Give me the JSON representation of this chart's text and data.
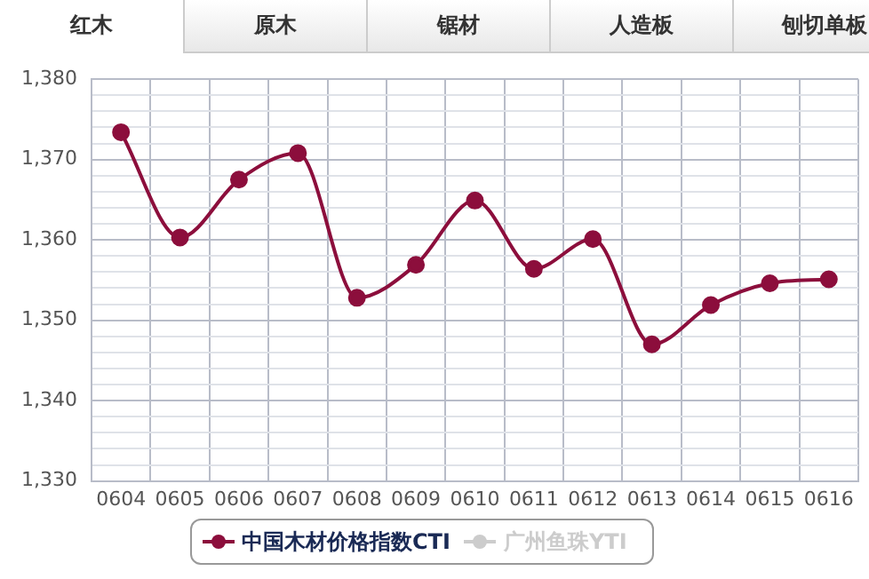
{
  "chart_data": {
    "type": "line",
    "annotations": [
      "红木",
      "原木",
      "锯材",
      "人造板",
      "刨切单板"
    ],
    "categories": [
      "0604",
      "0605",
      "0606",
      "0607",
      "0608",
      "0609",
      "0610",
      "0611",
      "0612",
      "0613",
      "0614",
      "0615",
      "0616"
    ],
    "series": [
      {
        "name": "中国木材价格指数CTI",
        "color": "#8c0e3c",
        "values": [
          1373.4,
          1360.3,
          1367.5,
          1370.8,
          1352.8,
          1356.9,
          1364.9,
          1356.4,
          1360.1,
          1347.0,
          1351.9,
          1354.6,
          1355.1
        ]
      },
      {
        "name": "广州鱼珠YTI",
        "color": "#cccccc",
        "values": [
          null,
          null,
          null,
          null,
          null,
          null,
          null,
          null,
          null,
          null,
          null,
          null,
          null
        ]
      }
    ],
    "ylim": [
      1330,
      1380
    ],
    "yticks": [
      {
        "value": 1330,
        "label": "1,330"
      },
      {
        "value": 1332,
        "label": null
      },
      {
        "value": 1334,
        "label": null
      },
      {
        "value": 1336,
        "label": null
      },
      {
        "value": 1338,
        "label": null
      },
      {
        "value": 1340,
        "label": "1,340"
      },
      {
        "value": 1342,
        "label": null
      },
      {
        "value": 1344,
        "label": null
      },
      {
        "value": 1346,
        "label": null
      },
      {
        "value": 1348,
        "label": null
      },
      {
        "value": 1350,
        "label": "1,350"
      },
      {
        "value": 1352,
        "label": null
      },
      {
        "value": 1354,
        "label": null
      },
      {
        "value": 1356,
        "label": null
      },
      {
        "value": 1358,
        "label": null
      },
      {
        "value": 1360,
        "label": "1,360"
      },
      {
        "value": 1362,
        "label": null
      },
      {
        "value": 1364,
        "label": null
      },
      {
        "value": 1366,
        "label": null
      },
      {
        "value": 1368,
        "label": null
      },
      {
        "value": 1370,
        "label": "1,370"
      },
      {
        "value": 1372,
        "label": null
      },
      {
        "value": 1374,
        "label": null
      },
      {
        "value": 1376,
        "label": null
      },
      {
        "value": 1378,
        "label": null
      },
      {
        "value": 1380,
        "label": "1,380"
      }
    ],
    "grid": true,
    "legend": "bottom",
    "marker": "circle",
    "line_style": "solid"
  }
}
